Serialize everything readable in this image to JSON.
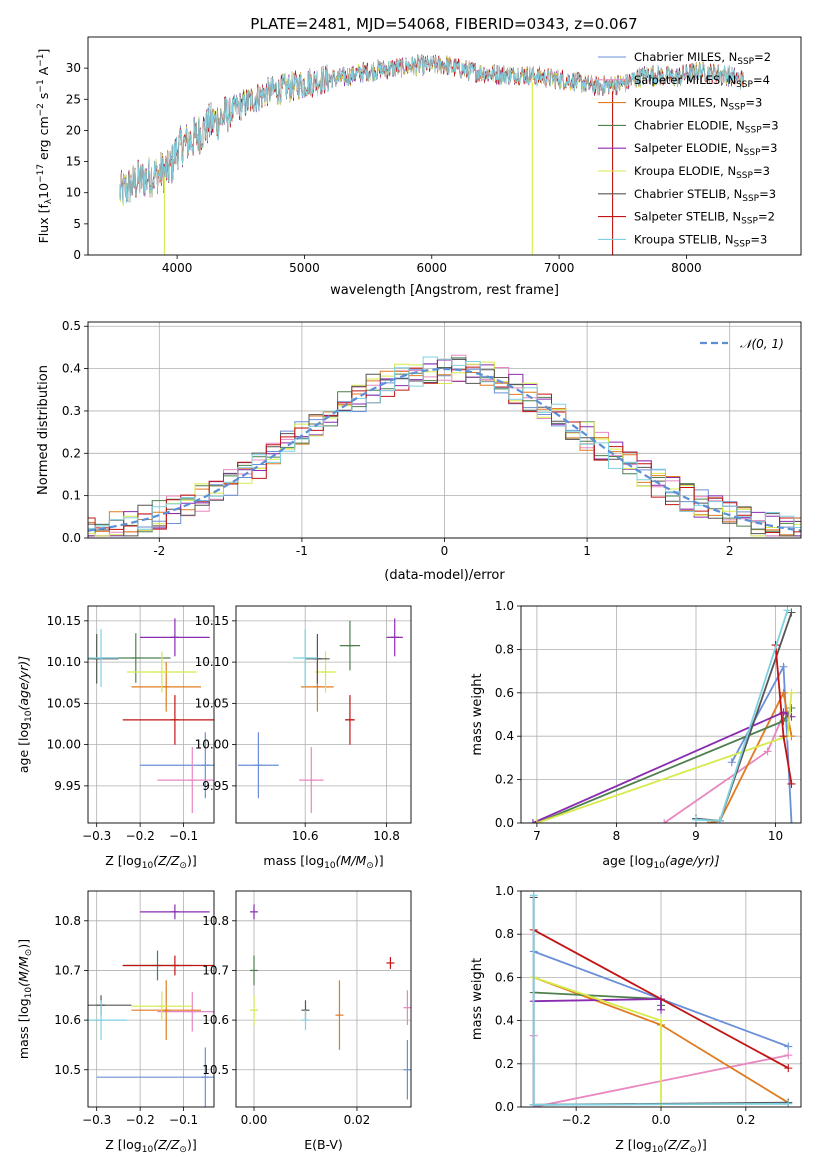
{
  "figure": {
    "title": "PLATE=2481, MJD=54068, FIBERID=0343, z=0.067"
  },
  "chart_data": [
    {
      "id": "spectrum",
      "type": "line",
      "xlabel": "wavelength [Angstrom, rest frame]",
      "ylabel": "Flux [f",
      "ylabel_rest": "10",
      "ylabel_parts": [
        "Flux [f",
        "λ",
        "10",
        "−17",
        " erg cm",
        "−2",
        " s",
        "−1",
        " A",
        "−1",
        "]"
      ],
      "xlim": [
        3300,
        8900
      ],
      "ylim": [
        0,
        35
      ],
      "xticks": [
        4000,
        5000,
        6000,
        7000,
        8000
      ],
      "yticks": [
        0,
        5,
        10,
        15,
        20,
        25,
        30
      ],
      "grid": false,
      "legend_position": "top-right",
      "series": [
        {
          "name": "Chabrier MILES, N",
          "sub": "SSP",
          "suffix": "=2",
          "color": "#6a8fd8"
        },
        {
          "name": "Salpeter MILES, N",
          "sub": "SSP",
          "suffix": "=4",
          "color": "#e887c0"
        },
        {
          "name": "Kroupa MILES, N",
          "sub": "SSP",
          "suffix": "=3",
          "color": "#e07b20"
        },
        {
          "name": "Chabrier ELODIE, N",
          "sub": "SSP",
          "suffix": "=3",
          "color": "#4f7f4f"
        },
        {
          "name": "Salpeter ELODIE, N",
          "sub": "SSP",
          "suffix": "=3",
          "color": "#8a2bb0"
        },
        {
          "name": "Kroupa ELODIE, N",
          "sub": "SSP",
          "suffix": "=3",
          "color": "#d7ea4a"
        },
        {
          "name": "Chabrier STELIB, N",
          "sub": "SSP",
          "suffix": "=3",
          "color": "#555555"
        },
        {
          "name": "Salpeter STELIB, N",
          "sub": "SSP",
          "suffix": "=2",
          "color": "#c21414"
        },
        {
          "name": "Kroupa STELIB, N",
          "sub": "SSP",
          "suffix": "=3",
          "color": "#7fd0e0"
        }
      ],
      "spectrum_shape": {
        "x": [
          3550,
          3700,
          3850,
          3950,
          4000,
          4150,
          4250,
          4350,
          4500,
          4700,
          4900,
          5100,
          5300,
          5500,
          5700,
          5900,
          6100,
          6300,
          6500,
          6700,
          6900,
          7100,
          7300,
          7500,
          7700,
          7900,
          8100,
          8300,
          8450
        ],
        "y": [
          10,
          12,
          13,
          14,
          17,
          19,
          21,
          22,
          24,
          26,
          27,
          28,
          28.5,
          29.5,
          30,
          30.5,
          30.5,
          29.5,
          29,
          29,
          28.5,
          28,
          27,
          27.5,
          29,
          28.5,
          29.5,
          29,
          28
        ]
      },
      "dropouts": [
        {
          "x": 3900,
          "series": 5
        },
        {
          "x": 6790,
          "series": 5
        },
        {
          "x": 7420,
          "series": 7
        }
      ]
    },
    {
      "id": "residuals",
      "type": "line",
      "xlabel": "(data-model)/error",
      "ylabel": "Normed distribution",
      "xlim": [
        -2.5,
        2.5
      ],
      "ylim": [
        0,
        0.51
      ],
      "xticks": [
        -2,
        -1,
        0,
        1,
        2
      ],
      "yticks": [
        0.0,
        0.1,
        0.2,
        0.3,
        0.4,
        0.5
      ],
      "grid": true,
      "legend_position": "top-right",
      "normal_curve": {
        "label": "𝒩(0, 1)",
        "color": "#5b8fd6"
      },
      "bin_width": 0.1
    },
    {
      "id": "age-vs-Z",
      "type": "scatter",
      "xlabel": "Z [log",
      "xlabel_parts": [
        "Z [log",
        "10",
        "(Z/Z",
        "⊙",
        ")]"
      ],
      "ylabel_parts": [
        "age  [log",
        "10",
        "(age/yr)]"
      ],
      "xlim": [
        -0.32,
        -0.03
      ],
      "ylim": [
        9.905,
        10.168
      ],
      "xticks": [
        -0.3,
        -0.2,
        -0.1
      ],
      "xticklabels": [
        "−0.3",
        "−0.2",
        "−0.1"
      ],
      "yticks": [
        9.95,
        10.0,
        10.05,
        10.1,
        10.15
      ],
      "yticklabels": [
        "9.95",
        "10.00",
        "10.05",
        "10.10",
        "10.15"
      ],
      "grid": true,
      "points": [
        {
          "series": 0,
          "x": -0.05,
          "xerr": 0.15,
          "y": 9.975,
          "yerr": 0.04
        },
        {
          "series": 1,
          "x": -0.08,
          "xerr": 0.08,
          "y": 9.957,
          "yerr": 0.04
        },
        {
          "series": 2,
          "x": -0.14,
          "xerr": 0.08,
          "y": 10.07,
          "yerr": 0.03
        },
        {
          "series": 3,
          "x": -0.21,
          "xerr": 0.08,
          "y": 10.105,
          "yerr": 0.03
        },
        {
          "series": 4,
          "x": -0.12,
          "xerr": 0.08,
          "y": 10.13,
          "yerr": 0.023
        },
        {
          "series": 5,
          "x": -0.15,
          "xerr": 0.08,
          "y": 10.088,
          "yerr": 0.025
        },
        {
          "series": 6,
          "x": -0.3,
          "xerr": 0.05,
          "y": 10.104,
          "yerr": 0.03
        },
        {
          "series": 7,
          "x": -0.12,
          "xerr": 0.12,
          "y": 10.03,
          "yerr": 0.03
        },
        {
          "series": 8,
          "x": -0.29,
          "xerr": 0.04,
          "y": 10.105,
          "yerr": 0.035
        }
      ]
    },
    {
      "id": "age-vs-mass",
      "type": "scatter",
      "xlabel_parts": [
        "mass [log",
        "10",
        "(M/M",
        "⊙",
        ")]"
      ],
      "xlim": [
        10.43,
        10.86
      ],
      "ylim": [
        9.905,
        10.168
      ],
      "xticks": [
        10.6,
        10.8
      ],
      "xticklabels": [
        "10.6",
        "10.8"
      ],
      "yticks": [
        9.95,
        10.0,
        10.05,
        10.1,
        10.15
      ],
      "yticklabels": [
        "9.95",
        "10.00",
        "10.05",
        "10.10",
        "10.15"
      ],
      "grid": true,
      "points": [
        {
          "series": 0,
          "x": 10.485,
          "xerr": 0.05,
          "y": 9.975,
          "yerr": 0.04
        },
        {
          "series": 1,
          "x": 10.615,
          "xerr": 0.03,
          "y": 9.957,
          "yerr": 0.04
        },
        {
          "series": 2,
          "x": 10.63,
          "xerr": 0.04,
          "y": 10.07,
          "yerr": 0.03
        },
        {
          "series": 3,
          "x": 10.71,
          "xerr": 0.025,
          "y": 10.12,
          "yerr": 0.03
        },
        {
          "series": 4,
          "x": 10.82,
          "xerr": 0.02,
          "y": 10.13,
          "yerr": 0.023
        },
        {
          "series": 5,
          "x": 10.65,
          "xerr": 0.025,
          "y": 10.088,
          "yerr": 0.025
        },
        {
          "series": 6,
          "x": 10.63,
          "xerr": 0.03,
          "y": 10.104,
          "yerr": 0.03
        },
        {
          "series": 7,
          "x": 10.71,
          "xerr": 0.012,
          "y": 10.03,
          "yerr": 0.03
        },
        {
          "series": 8,
          "x": 10.6,
          "xerr": 0.03,
          "y": 10.105,
          "yerr": 0.035
        }
      ]
    },
    {
      "id": "massweight-vs-age",
      "type": "line",
      "xlabel_parts": [
        "age  [log",
        "10",
        "(age/yr)]"
      ],
      "ylabel": "mass weight",
      "xlim": [
        6.8,
        10.32
      ],
      "ylim": [
        0,
        1
      ],
      "xticks": [
        7,
        8,
        9,
        10
      ],
      "yticks": [
        0.0,
        0.2,
        0.4,
        0.6,
        0.8,
        1.0
      ],
      "grid": true,
      "lines": [
        {
          "series": 0,
          "x": [
            9.45,
            10.1,
            10.2
          ],
          "y": [
            0.28,
            0.72,
            0.0
          ]
        },
        {
          "series": 1,
          "x": [
            8.6,
            9.9,
            10.1
          ],
          "y": [
            0.0,
            0.33,
            0.5
          ]
        },
        {
          "series": 2,
          "x": [
            9.15,
            9.3,
            10.1,
            10.2
          ],
          "y": [
            0.0,
            0.01,
            0.6,
            0.4
          ]
        },
        {
          "series": 3,
          "x": [
            7.0,
            10.1,
            10.2
          ],
          "y": [
            0.0,
            0.47,
            0.53
          ]
        },
        {
          "series": 4,
          "x": [
            6.95,
            10.1,
            10.2
          ],
          "y": [
            0.0,
            0.51,
            0.49
          ]
        },
        {
          "series": 5,
          "x": [
            7.0,
            10.15,
            10.2
          ],
          "y": [
            0.0,
            0.4,
            0.6
          ]
        },
        {
          "series": 6,
          "x": [
            9.0,
            9.3,
            10.2
          ],
          "y": [
            0.02,
            0.01,
            0.97
          ]
        },
        {
          "series": 7,
          "x": [
            10.0,
            10.1,
            10.2
          ],
          "y": [
            0.82,
            0.4,
            0.18
          ]
        },
        {
          "series": 8,
          "x": [
            9.0,
            9.3,
            10.15
          ],
          "y": [
            0.015,
            0.01,
            0.98
          ]
        }
      ]
    },
    {
      "id": "mass-vs-Z",
      "type": "scatter",
      "xlabel_parts": [
        "Z [log",
        "10",
        "(Z/Z",
        "⊙",
        ")]"
      ],
      "ylabel_parts": [
        "mass [log",
        "10",
        "(M/M",
        "⊙",
        ")]"
      ],
      "xlim": [
        -0.32,
        -0.03
      ],
      "ylim": [
        10.425,
        10.86
      ],
      "xticks": [
        -0.3,
        -0.2,
        -0.1
      ],
      "xticklabels": [
        "−0.3",
        "−0.2",
        "−0.1"
      ],
      "yticks": [
        10.5,
        10.6,
        10.7,
        10.8
      ],
      "yticklabels": [
        "10.5",
        "10.6",
        "10.7",
        "10.8"
      ],
      "grid": true,
      "points": [
        {
          "series": 0,
          "x": -0.05,
          "xerr": 0.25,
          "y": 10.485,
          "yerr": 0.06
        },
        {
          "series": 1,
          "x": -0.08,
          "xerr": 0.08,
          "y": 10.617,
          "yerr": 0.04
        },
        {
          "series": 2,
          "x": -0.14,
          "xerr": 0.08,
          "y": 10.62,
          "yerr": 0.06
        },
        {
          "series": 3,
          "x": -0.16,
          "xerr": 0.08,
          "y": 10.71,
          "yerr": 0.03
        },
        {
          "series": 4,
          "x": -0.12,
          "xerr": 0.08,
          "y": 10.818,
          "yerr": 0.015
        },
        {
          "series": 5,
          "x": -0.15,
          "xerr": 0.07,
          "y": 10.628,
          "yerr": 0.03
        },
        {
          "series": 6,
          "x": -0.29,
          "xerr": 0.07,
          "y": 10.63,
          "yerr": 0.02
        },
        {
          "series": 7,
          "x": -0.12,
          "xerr": 0.12,
          "y": 10.71,
          "yerr": 0.02
        },
        {
          "series": 8,
          "x": -0.29,
          "xerr": 0.06,
          "y": 10.6,
          "yerr": 0.04
        }
      ]
    },
    {
      "id": "mass-vs-ebv",
      "type": "scatter",
      "xlabel": "E(B-V)",
      "xlim": [
        -0.0035,
        0.0305
      ],
      "ylim": [
        10.425,
        10.86
      ],
      "xticks": [
        0.0,
        0.02
      ],
      "xticklabels": [
        "0.00",
        "0.02"
      ],
      "yticks": [
        10.5,
        10.6,
        10.7,
        10.8
      ],
      "yticklabels": [
        "10.5",
        "10.6",
        "10.7",
        "10.8"
      ],
      "grid": true,
      "points": [
        {
          "series": 0,
          "x": 0.0298,
          "xerr": 0.0,
          "y": 10.5,
          "yerr": 0.06
        },
        {
          "series": 1,
          "x": 0.0298,
          "xerr": 0.0,
          "y": 10.625,
          "yerr": 0.035
        },
        {
          "series": 2,
          "x": 0.0166,
          "xerr": 0.0,
          "y": 10.61,
          "yerr": 0.07
        },
        {
          "series": 3,
          "x": 0.0,
          "xerr": 0.0,
          "y": 10.7,
          "yerr": 0.03
        },
        {
          "series": 4,
          "x": 0.0,
          "xerr": 0.0,
          "y": 10.818,
          "yerr": 0.015
        },
        {
          "series": 5,
          "x": 0.0,
          "xerr": 0.0,
          "y": 10.62,
          "yerr": 0.03
        },
        {
          "series": 6,
          "x": 0.01,
          "xerr": 0.0,
          "y": 10.62,
          "yerr": 0.02
        },
        {
          "series": 7,
          "x": 0.0265,
          "xerr": 0.0,
          "y": 10.715,
          "yerr": 0.012
        },
        {
          "series": 8,
          "x": 0.01,
          "xerr": 0.0,
          "y": 10.6,
          "yerr": 0.02
        }
      ]
    },
    {
      "id": "massweight-vs-Z",
      "type": "line",
      "xlabel_parts": [
        "Z [log",
        "10",
        "(Z/Z",
        "⊙",
        ")]"
      ],
      "ylabel": "mass weight",
      "xlim": [
        -0.33,
        0.33
      ],
      "ylim": [
        0,
        1
      ],
      "xticks": [
        -0.2,
        0.0,
        0.2
      ],
      "xticklabels": [
        "−0.2",
        "0.0",
        "0.2"
      ],
      "yticks": [
        0.0,
        0.2,
        0.4,
        0.6,
        0.8,
        1.0
      ],
      "grid": true,
      "lines": [
        {
          "series": 0,
          "x": [
            -0.3,
            0.0,
            0.3
          ],
          "y": [
            0.72,
            0.5,
            0.28
          ]
        },
        {
          "series": 1,
          "x": [
            -0.3,
            -0.3,
            0.3
          ],
          "y": [
            0.33,
            0.0,
            0.24
          ]
        },
        {
          "series": 2,
          "x": [
            -0.3,
            0.0,
            0.3
          ],
          "y": [
            0.6,
            0.38,
            0.02
          ]
        },
        {
          "series": 3,
          "x": [
            -0.3,
            0.0,
            0.0
          ],
          "y": [
            0.53,
            0.5,
            0.47
          ]
        },
        {
          "series": 4,
          "x": [
            -0.3,
            0.0,
            0.0
          ],
          "y": [
            0.49,
            0.5,
            0.45
          ]
        },
        {
          "series": 5,
          "x": [
            -0.3,
            0.0,
            0.0
          ],
          "y": [
            0.6,
            0.4,
            0.0
          ]
        },
        {
          "series": 6,
          "x": [
            -0.3,
            -0.3,
            0.3
          ],
          "y": [
            0.97,
            0.01,
            0.02
          ]
        },
        {
          "series": 7,
          "x": [
            -0.3,
            0.3
          ],
          "y": [
            0.82,
            0.18
          ]
        },
        {
          "series": 8,
          "x": [
            -0.3,
            -0.3,
            0.3
          ],
          "y": [
            0.98,
            0.01,
            0.015
          ]
        }
      ]
    }
  ]
}
